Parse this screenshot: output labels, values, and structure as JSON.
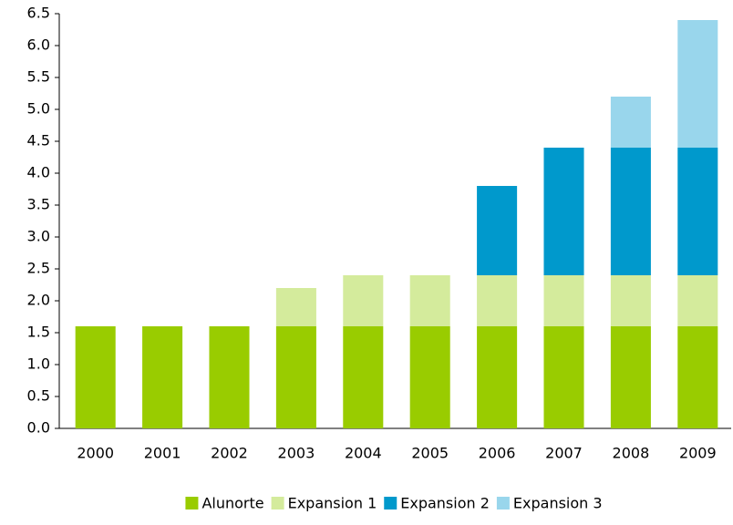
{
  "chart_data": {
    "type": "stacked_bar",
    "categories": [
      "2000",
      "2001",
      "2002",
      "2003",
      "2004",
      "2005",
      "2006",
      "2007",
      "2008",
      "2009"
    ],
    "series": [
      {
        "name": "Alunorte",
        "color": "#99cc00",
        "values": [
          1.6,
          1.6,
          1.6,
          1.6,
          1.6,
          1.6,
          1.6,
          1.6,
          1.6,
          1.6
        ]
      },
      {
        "name": "Expansion 1",
        "color": "#d4eb9c",
        "values": [
          0,
          0,
          0,
          0.6,
          0.8,
          0.8,
          0.8,
          0.8,
          0.8,
          0.8
        ]
      },
      {
        "name": "Expansion 2",
        "color": "#0099cc",
        "values": [
          0,
          0,
          0,
          0,
          0,
          0,
          1.4,
          2.0,
          2.0,
          2.0
        ]
      },
      {
        "name": "Expansion 3",
        "color": "#99d6ec",
        "values": [
          0,
          0,
          0,
          0,
          0,
          0,
          0,
          0,
          0.8,
          2.0
        ]
      }
    ],
    "ylim": [
      0,
      6.5
    ],
    "yticks": [
      {
        "value": 0,
        "label": "0.0"
      },
      0.5,
      {
        "value": 1,
        "label": "1.0"
      },
      1.5,
      {
        "value": 2,
        "label": "2.0"
      },
      2.5,
      {
        "value": 3,
        "label": "3.0"
      },
      3.5,
      {
        "value": 4,
        "label": "4.0"
      },
      4.5,
      {
        "value": 5,
        "label": "5.0"
      },
      5.5,
      {
        "value": 6,
        "label": "6.0"
      },
      6.5
    ],
    "legend": "bottom"
  }
}
